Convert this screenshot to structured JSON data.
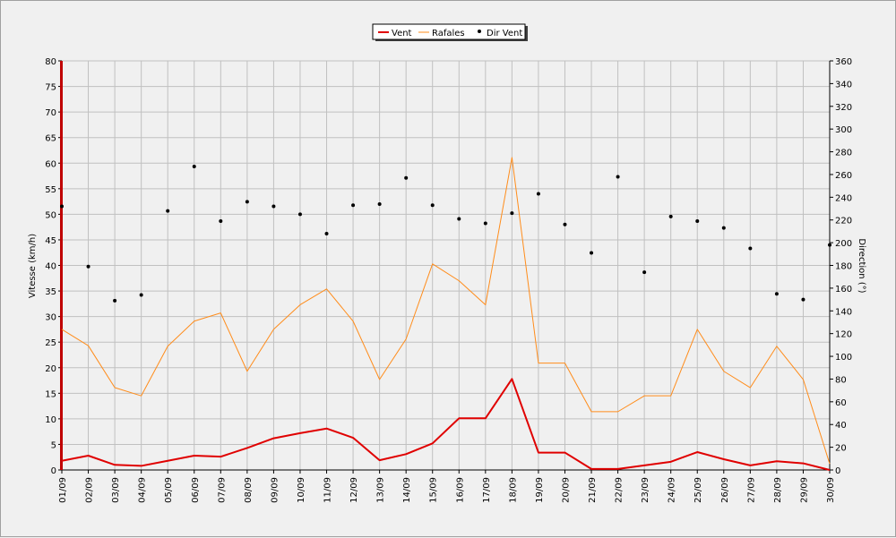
{
  "chart_data": {
    "type": "line",
    "title": "",
    "categories": [
      "01/09",
      "02/09",
      "03/09",
      "04/09",
      "05/09",
      "06/09",
      "07/09",
      "08/09",
      "09/09",
      "10/09",
      "11/09",
      "12/09",
      "13/09",
      "14/09",
      "15/09",
      "16/09",
      "17/09",
      "18/09",
      "19/09",
      "20/09",
      "21/09",
      "22/09",
      "23/09",
      "24/09",
      "25/09",
      "26/09",
      "27/09",
      "28/09",
      "29/09",
      "30/09"
    ],
    "ylabel_left": "Vitesse (km/h)",
    "ylabel_right": "Direction (°)",
    "ylim_left": [
      0,
      80
    ],
    "ylim_right": [
      0,
      360
    ],
    "yticks_left": [
      0,
      5,
      10,
      15,
      20,
      25,
      30,
      35,
      40,
      45,
      50,
      55,
      60,
      65,
      70,
      75,
      80
    ],
    "yticks_right": [
      0,
      20,
      40,
      60,
      80,
      100,
      120,
      140,
      160,
      180,
      200,
      220,
      240,
      260,
      280,
      300,
      320,
      340,
      360
    ],
    "grid": true,
    "legend_position": "top-center",
    "series": [
      {
        "name": "Vent",
        "axis": "left",
        "style": "line",
        "color": "#e00000",
        "values": [
          1.8,
          2.8,
          1.0,
          0.8,
          1.8,
          2.8,
          2.6,
          4.3,
          6.2,
          7.2,
          8.1,
          6.3,
          1.9,
          3.1,
          5.2,
          10.1,
          10.1,
          17.8,
          3.4,
          3.4,
          0.2,
          0.2,
          0.9,
          1.6,
          3.5,
          2.1,
          0.9,
          1.7,
          1.3,
          0.0
        ]
      },
      {
        "name": "Rafales",
        "axis": "left",
        "style": "line",
        "color": "#ff8c1a",
        "values": [
          27.5,
          24.3,
          16.1,
          14.5,
          24.2,
          29.1,
          30.7,
          19.3,
          27.5,
          32.3,
          35.4,
          29.1,
          17.7,
          25.6,
          40.3,
          37.0,
          32.3,
          61.1,
          20.9,
          20.9,
          11.4,
          11.4,
          14.5,
          14.5,
          27.5,
          19.3,
          16.1,
          24.2,
          17.7,
          1.2
        ]
      },
      {
        "name": "Dir Vent",
        "axis": "right",
        "style": "scatter",
        "color": "#000000",
        "values": [
          232,
          179,
          149,
          154,
          228,
          267,
          219,
          236,
          232,
          225,
          208,
          233,
          234,
          257,
          233,
          221,
          217,
          226,
          243,
          216,
          191,
          258,
          174,
          223,
          219,
          213,
          195,
          155,
          150,
          198
        ]
      }
    ]
  }
}
